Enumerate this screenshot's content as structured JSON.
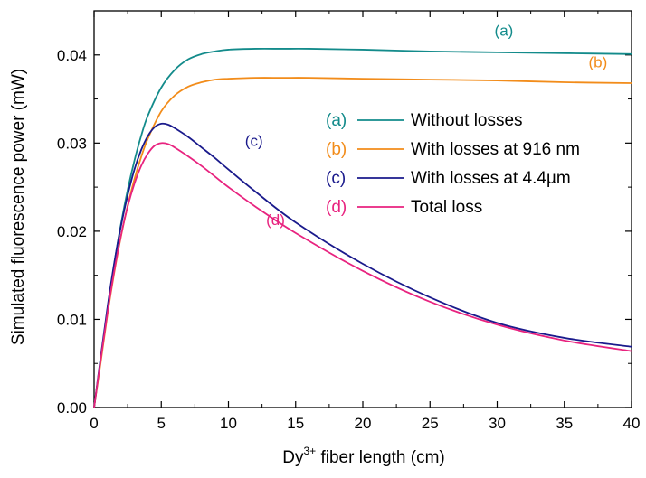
{
  "chart_data": {
    "type": "line",
    "title": "",
    "xlabel": {
      "base": "Dy",
      "sup": "3+",
      "rest": " fiber length (cm)"
    },
    "ylabel": "Simulated fluorescence power (mW)",
    "xlim": [
      0,
      40
    ],
    "ylim": [
      0,
      0.045
    ],
    "xticks": [
      0,
      5,
      10,
      15,
      20,
      25,
      30,
      35,
      40
    ],
    "xtick_labels": [
      "0",
      "5",
      "10",
      "15",
      "20",
      "25",
      "30",
      "35",
      "40"
    ],
    "yticks": [
      0,
      0.01,
      0.02,
      0.03,
      0.04
    ],
    "ytick_labels": [
      "0.00",
      "0.01",
      "0.02",
      "0.03",
      "0.04"
    ],
    "grid": false,
    "legend_position": "center-right",
    "series": [
      {
        "letter": "(a)",
        "name": "Without losses",
        "color": "#138b8b",
        "x": [
          0,
          0.5,
          1,
          1.5,
          2,
          2.5,
          3,
          3.5,
          4,
          5,
          6,
          7,
          8,
          9,
          10,
          12,
          14,
          16,
          20,
          25,
          30,
          35,
          40
        ],
        "y": [
          0,
          0.0055,
          0.0112,
          0.0163,
          0.0208,
          0.0247,
          0.028,
          0.0308,
          0.0331,
          0.0363,
          0.0383,
          0.0395,
          0.0401,
          0.0404,
          0.0406,
          0.0407,
          0.0407,
          0.0407,
          0.0406,
          0.0404,
          0.0403,
          0.0402,
          0.0401
        ]
      },
      {
        "letter": "(b)",
        "name": "With losses at 916 nm",
        "color": "#f28c1a",
        "x": [
          0,
          0.5,
          1,
          1.5,
          2,
          2.5,
          3,
          3.5,
          4,
          5,
          6,
          7,
          8,
          9,
          10,
          12,
          14,
          16,
          20,
          25,
          30,
          35,
          40
        ],
        "y": [
          0,
          0.0052,
          0.0106,
          0.0153,
          0.0194,
          0.0229,
          0.0259,
          0.0284,
          0.0305,
          0.0336,
          0.0354,
          0.0364,
          0.0369,
          0.0372,
          0.0373,
          0.0374,
          0.0374,
          0.0374,
          0.0373,
          0.0372,
          0.0371,
          0.0369,
          0.0368
        ]
      },
      {
        "letter": "(c)",
        "name": "With losses at 4.4µm",
        "color": "#1a1a8c",
        "x": [
          0,
          0.5,
          1,
          1.5,
          2,
          2.5,
          3,
          3.5,
          4,
          4.5,
          5,
          5.5,
          6,
          7,
          8,
          9,
          10,
          12,
          15,
          20,
          25,
          30,
          35,
          40
        ],
        "y": [
          0,
          0.0058,
          0.0114,
          0.0164,
          0.0206,
          0.0241,
          0.027,
          0.0292,
          0.0308,
          0.0318,
          0.0322,
          0.0321,
          0.0317,
          0.0307,
          0.0295,
          0.0283,
          0.027,
          0.0245,
          0.021,
          0.0163,
          0.0125,
          0.0096,
          0.0079,
          0.0069
        ]
      },
      {
        "letter": "(d)",
        "name": "Total loss",
        "color": "#e8237f",
        "x": [
          0,
          0.5,
          1,
          1.5,
          2,
          2.5,
          3,
          3.5,
          4,
          4.5,
          5,
          5.5,
          6,
          7,
          8,
          9,
          10,
          12,
          15,
          20,
          25,
          30,
          35,
          40
        ],
        "y": [
          0,
          0.0055,
          0.0108,
          0.0155,
          0.0195,
          0.0228,
          0.0254,
          0.0274,
          0.0288,
          0.0297,
          0.03,
          0.0299,
          0.0295,
          0.0285,
          0.0274,
          0.0262,
          0.025,
          0.0228,
          0.0198,
          0.0155,
          0.012,
          0.0094,
          0.0076,
          0.0064
        ]
      }
    ],
    "annotations": [
      {
        "text": "(a)",
        "x": 30.5,
        "y": 0.0422,
        "color": "#138b8b"
      },
      {
        "text": "(b)",
        "x": 37.5,
        "y": 0.0386,
        "color": "#f28c1a"
      },
      {
        "text": "(c)",
        "x": 11.9,
        "y": 0.0297,
        "color": "#1a1a8c"
      },
      {
        "text": "(d)",
        "x": 13.5,
        "y": 0.0207,
        "color": "#e8237f"
      }
    ]
  }
}
